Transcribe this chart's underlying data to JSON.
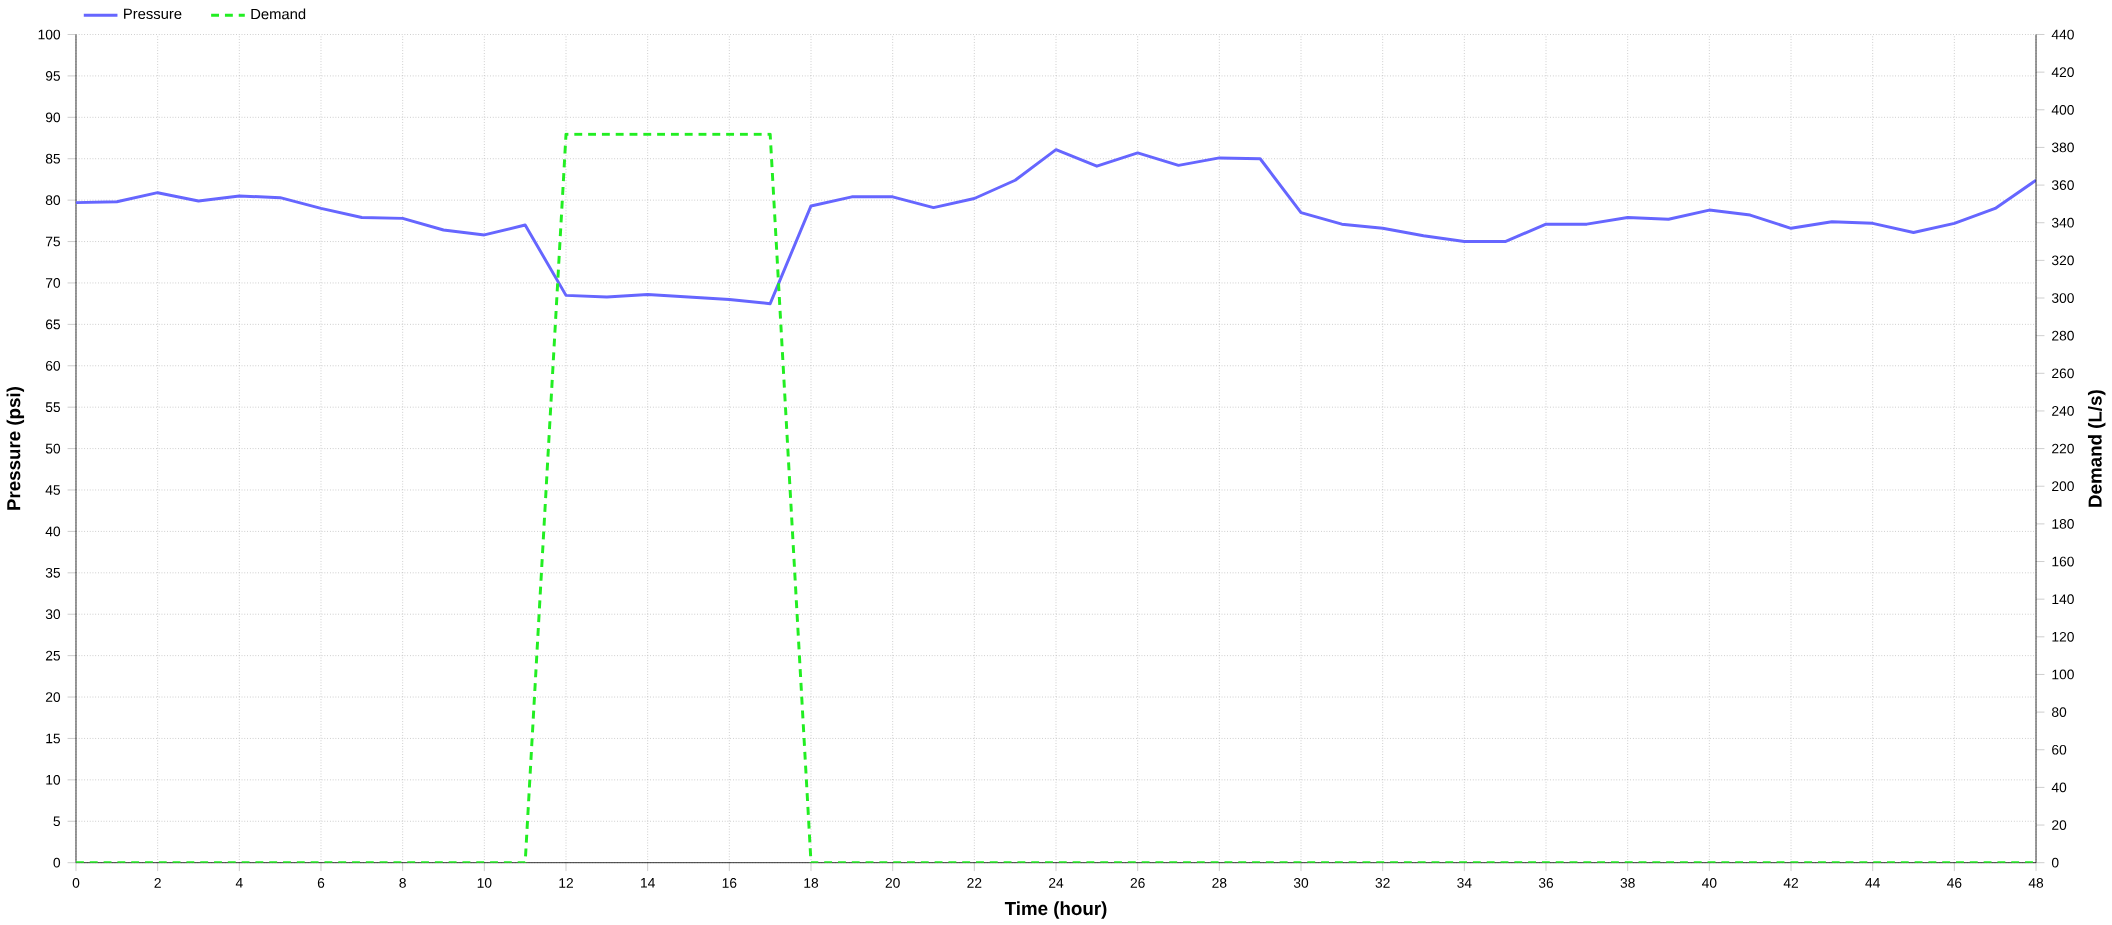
{
  "chart_data": {
    "type": "line",
    "xlabel": "Time (hour)",
    "ylabel": "Pressure (psi)",
    "y2label": "Demand (L/s)",
    "x": [
      0,
      1,
      2,
      3,
      4,
      5,
      6,
      7,
      8,
      9,
      10,
      11,
      12,
      13,
      14,
      15,
      16,
      17,
      18,
      19,
      20,
      21,
      22,
      23,
      24,
      25,
      26,
      27,
      28,
      29,
      30,
      31,
      32,
      33,
      34,
      35,
      36,
      37,
      38,
      39,
      40,
      41,
      42,
      43,
      44,
      45,
      46,
      47,
      48
    ],
    "series": [
      {
        "name": "Pressure",
        "color": "#6666ff",
        "line_style": "solid",
        "values": [
          79.7,
          79.8,
          80.9,
          79.9,
          80.5,
          80.3,
          79.0,
          77.9,
          77.8,
          76.4,
          75.8,
          77.0,
          68.5,
          68.3,
          68.6,
          68.3,
          68.0,
          67.5,
          79.3,
          80.4,
          80.4,
          79.1,
          80.2,
          82.4,
          86.1,
          84.1,
          85.7,
          84.2,
          85.1,
          85.0,
          78.5,
          77.1,
          76.6,
          75.7,
          75.0,
          75.0,
          77.1,
          77.1,
          77.9,
          77.7,
          78.8,
          78.2,
          76.6,
          77.4,
          77.2,
          76.1,
          77.2,
          79.0,
          82.4
        ]
      },
      {
        "name": "Demand",
        "color": "#22ee22",
        "line_style": "dashed",
        "axis": "y2",
        "values": [
          0,
          0,
          0,
          0,
          0,
          0,
          0,
          0,
          0,
          0,
          0,
          0,
          387,
          387,
          387,
          387,
          387,
          387,
          0,
          0,
          0,
          0,
          0,
          0,
          0,
          0,
          0,
          0,
          0,
          0,
          0,
          0,
          0,
          0,
          0,
          0,
          0,
          0,
          0,
          0,
          0,
          0,
          0,
          0,
          0,
          0,
          0,
          0,
          0
        ]
      }
    ],
    "xlim": [
      0,
      48
    ],
    "xticks": [
      0,
      2,
      4,
      6,
      8,
      10,
      12,
      14,
      16,
      18,
      20,
      22,
      24,
      26,
      28,
      30,
      32,
      34,
      36,
      38,
      40,
      42,
      44,
      46,
      48
    ],
    "ylim": [
      0,
      100
    ],
    "yticks": [
      0,
      5,
      10,
      15,
      20,
      25,
      30,
      35,
      40,
      45,
      50,
      55,
      60,
      65,
      70,
      75,
      80,
      85,
      90,
      95,
      100
    ],
    "y2lim": [
      0,
      440
    ],
    "y2ticks": [
      0,
      20,
      40,
      60,
      80,
      100,
      120,
      140,
      160,
      180,
      200,
      220,
      240,
      260,
      280,
      300,
      320,
      340,
      360,
      380,
      400,
      420,
      440
    ],
    "grid": true,
    "legend": "top left",
    "marker": "none"
  }
}
